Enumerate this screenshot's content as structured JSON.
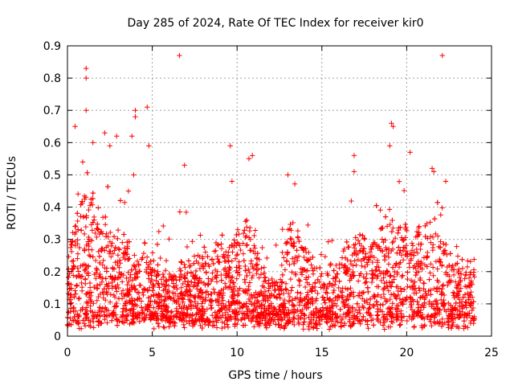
{
  "chart_data": {
    "type": "scatter",
    "title": "Day 285 of 2024, Rate Of TEC Index for receiver kir0",
    "xlabel": "GPS time / hours",
    "ylabel": "ROTI / TECUs",
    "xlim": [
      0,
      25
    ],
    "ylim": [
      0,
      0.9
    ],
    "xticks": [
      0,
      5,
      10,
      15,
      20,
      25
    ],
    "xtick_labels": [
      "0",
      "5",
      "10",
      "15",
      "20",
      "25"
    ],
    "yticks": [
      0,
      0.1,
      0.2,
      0.3,
      0.4,
      0.5,
      0.6,
      0.7,
      0.8,
      0.9
    ],
    "ytick_labels": [
      "0",
      "0.1",
      "0.2",
      "0.3",
      "0.4",
      "0.5",
      "0.6",
      "0.7",
      "0.8",
      "0.9"
    ],
    "grid": true,
    "marker": "plus",
    "color": "#ff0000",
    "series": [
      {
        "name": "ROTI",
        "envelope_hours": [
          0,
          0.5,
          1,
          1.5,
          2,
          2.5,
          3,
          3.5,
          4,
          4.5,
          5,
          5.5,
          6,
          6.5,
          7,
          7.5,
          8,
          8.5,
          9,
          9.5,
          10,
          10.5,
          11,
          11.5,
          12,
          12.5,
          13,
          13.5,
          14,
          14.5,
          15,
          15.5,
          16,
          16.5,
          17,
          17.5,
          18,
          18.5,
          19,
          19.5,
          20,
          20.5,
          21,
          21.5,
          22,
          22.5,
          23,
          23.5,
          24
        ],
        "envelope_typical": [
          0.15,
          0.22,
          0.28,
          0.25,
          0.24,
          0.2,
          0.16,
          0.18,
          0.15,
          0.17,
          0.12,
          0.12,
          0.12,
          0.13,
          0.12,
          0.13,
          0.14,
          0.15,
          0.16,
          0.16,
          0.18,
          0.22,
          0.18,
          0.1,
          0.08,
          0.1,
          0.2,
          0.2,
          0.17,
          0.12,
          0.1,
          0.08,
          0.12,
          0.16,
          0.18,
          0.17,
          0.18,
          0.2,
          0.2,
          0.22,
          0.2,
          0.18,
          0.22,
          0.22,
          0.18,
          0.14,
          0.12,
          0.12,
          0.1
        ],
        "outliers": [
          {
            "x": 0.45,
            "y": 0.65
          },
          {
            "x": 1.1,
            "y": 0.83
          },
          {
            "x": 1.1,
            "y": 0.8
          },
          {
            "x": 1.1,
            "y": 0.7
          },
          {
            "x": 1.5,
            "y": 0.6
          },
          {
            "x": 2.2,
            "y": 0.63
          },
          {
            "x": 2.5,
            "y": 0.59
          },
          {
            "x": 2.9,
            "y": 0.62
          },
          {
            "x": 3.8,
            "y": 0.62
          },
          {
            "x": 4.0,
            "y": 0.7
          },
          {
            "x": 4.0,
            "y": 0.68
          },
          {
            "x": 4.7,
            "y": 0.71
          },
          {
            "x": 4.8,
            "y": 0.59
          },
          {
            "x": 6.6,
            "y": 0.87
          },
          {
            "x": 6.9,
            "y": 0.53
          },
          {
            "x": 9.6,
            "y": 0.59
          },
          {
            "x": 9.7,
            "y": 0.48
          },
          {
            "x": 13.0,
            "y": 0.5
          },
          {
            "x": 16.9,
            "y": 0.56
          },
          {
            "x": 16.9,
            "y": 0.51
          },
          {
            "x": 19.1,
            "y": 0.66
          },
          {
            "x": 19.2,
            "y": 0.65
          },
          {
            "x": 19.0,
            "y": 0.59
          },
          {
            "x": 20.2,
            "y": 0.57
          },
          {
            "x": 21.5,
            "y": 0.52
          },
          {
            "x": 21.6,
            "y": 0.51
          },
          {
            "x": 22.1,
            "y": 0.87
          },
          {
            "x": 22.3,
            "y": 0.48
          },
          {
            "x": 0.9,
            "y": 0.54
          },
          {
            "x": 10.7,
            "y": 0.55
          },
          {
            "x": 10.9,
            "y": 0.56
          },
          {
            "x": 3.9,
            "y": 0.5
          }
        ]
      }
    ]
  }
}
